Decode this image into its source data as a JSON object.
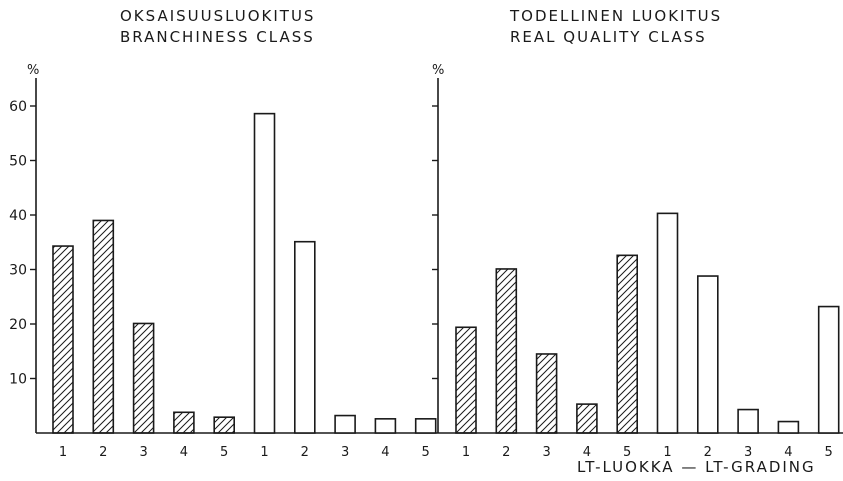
{
  "chart_data": {
    "type": "bar",
    "ylabel": "%",
    "xlabel": "LT-LUOKKA — LT-GRADING",
    "ylim": [
      0,
      65
    ],
    "yticks": [
      10,
      20,
      30,
      40,
      50,
      60
    ],
    "categories": [
      "1",
      "2",
      "3",
      "4",
      "5"
    ],
    "panels": [
      {
        "title_line1": "OKSAISUUSLUOKITUS",
        "title_line2": "BRANCHINESS CLASS",
        "series": [
          {
            "style": "hatched",
            "values": [
              34.3,
              39.0,
              20.1,
              3.8,
              2.9
            ]
          },
          {
            "style": "open",
            "values": [
              58.6,
              35.1,
              3.2,
              2.6,
              2.6
            ]
          }
        ]
      },
      {
        "title_line1": "TODELLINEN LUOKITUS",
        "title_line2": "REAL QUALITY CLASS",
        "series": [
          {
            "style": "hatched",
            "values": [
              19.4,
              30.1,
              14.5,
              5.3,
              32.6
            ]
          },
          {
            "style": "open",
            "values": [
              40.3,
              28.8,
              4.3,
              2.1,
              23.2
            ]
          }
        ]
      }
    ]
  }
}
